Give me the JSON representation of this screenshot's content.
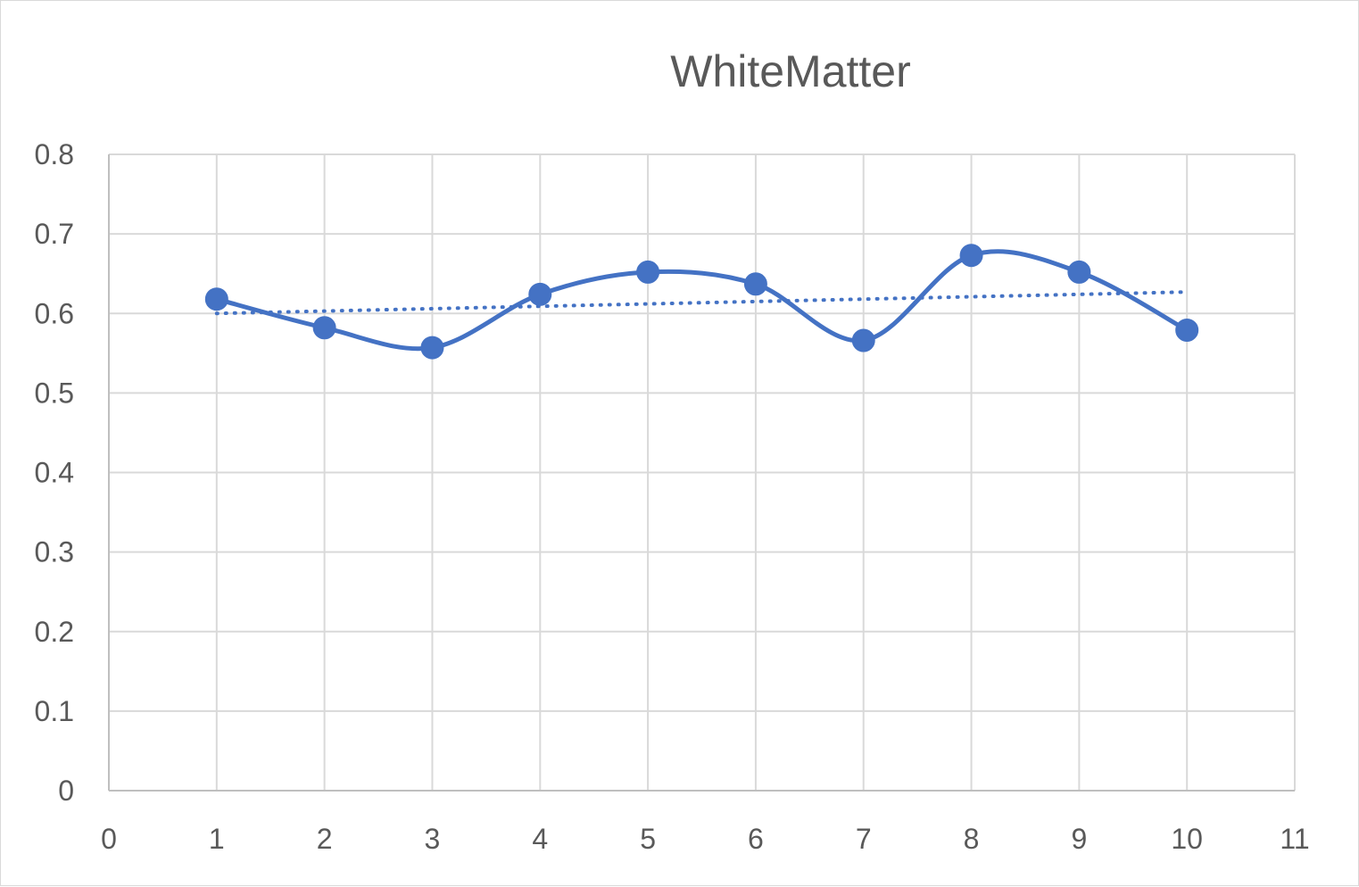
{
  "chart_data": {
    "type": "scatter",
    "title": "WhiteMatter",
    "xlabel": "",
    "ylabel": "",
    "xlim": [
      0,
      11
    ],
    "ylim": [
      0,
      0.8
    ],
    "x_ticks": [
      "0",
      "1",
      "2",
      "3",
      "4",
      "5",
      "6",
      "7",
      "8",
      "9",
      "10",
      "11"
    ],
    "y_ticks": [
      "0",
      "0.1",
      "0.2",
      "0.3",
      "0.4",
      "0.5",
      "0.6",
      "0.7",
      "0.8"
    ],
    "grid": true,
    "legend": "none",
    "series": [
      {
        "style": "smooth line with markers",
        "color": "#4472C4",
        "x": [
          1,
          2,
          3,
          4,
          5,
          6,
          7,
          8,
          9,
          10
        ],
        "y": [
          0.618,
          0.582,
          0.557,
          0.624,
          0.652,
          0.637,
          0.566,
          0.673,
          0.652,
          0.579
        ]
      }
    ],
    "trendline": {
      "type": "linear",
      "style": "dotted",
      "color": "#4472C4",
      "x": [
        1,
        10
      ],
      "y": [
        0.6,
        0.627
      ]
    }
  }
}
